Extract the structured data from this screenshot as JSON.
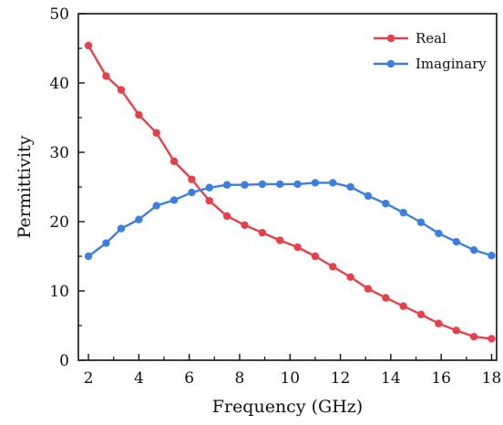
{
  "chart_data": {
    "type": "line",
    "title": "",
    "xlabel": "Frequency (GHz)",
    "ylabel": "Permittivity",
    "xlim": [
      1.6,
      18.2
    ],
    "ylim": [
      0,
      50
    ],
    "x_ticks": [
      "2",
      "4",
      "6",
      "8",
      "10",
      "12",
      "14",
      "16",
      "18"
    ],
    "y_ticks": [
      "0",
      "10",
      "20",
      "30",
      "40",
      "50"
    ],
    "grid": false,
    "legend_position": "top-right",
    "x": [
      2.0,
      2.7,
      3.3,
      4.0,
      4.7,
      5.4,
      6.1,
      6.8,
      7.5,
      8.2,
      8.9,
      9.6,
      10.3,
      11.0,
      11.7,
      12.4,
      13.1,
      13.8,
      14.5,
      15.2,
      15.9,
      16.6,
      17.3,
      18.0
    ],
    "series": [
      {
        "name": "Real",
        "color": "#e8404a",
        "values": [
          45.4,
          41.0,
          39.0,
          35.4,
          32.8,
          28.7,
          26.1,
          23.0,
          20.8,
          19.5,
          18.4,
          17.3,
          16.3,
          15.0,
          13.5,
          12.0,
          10.3,
          9.0,
          7.8,
          6.6,
          5.3,
          4.3,
          3.4,
          3.1
        ]
      },
      {
        "name": "Imaginary",
        "color": "#3d7fe0",
        "values": [
          15.0,
          16.9,
          19.0,
          20.3,
          22.3,
          23.1,
          24.2,
          24.9,
          25.3,
          25.3,
          25.4,
          25.4,
          25.4,
          25.6,
          25.6,
          25.0,
          23.7,
          22.6,
          21.3,
          19.9,
          18.3,
          17.1,
          15.9,
          15.1
        ]
      }
    ]
  }
}
